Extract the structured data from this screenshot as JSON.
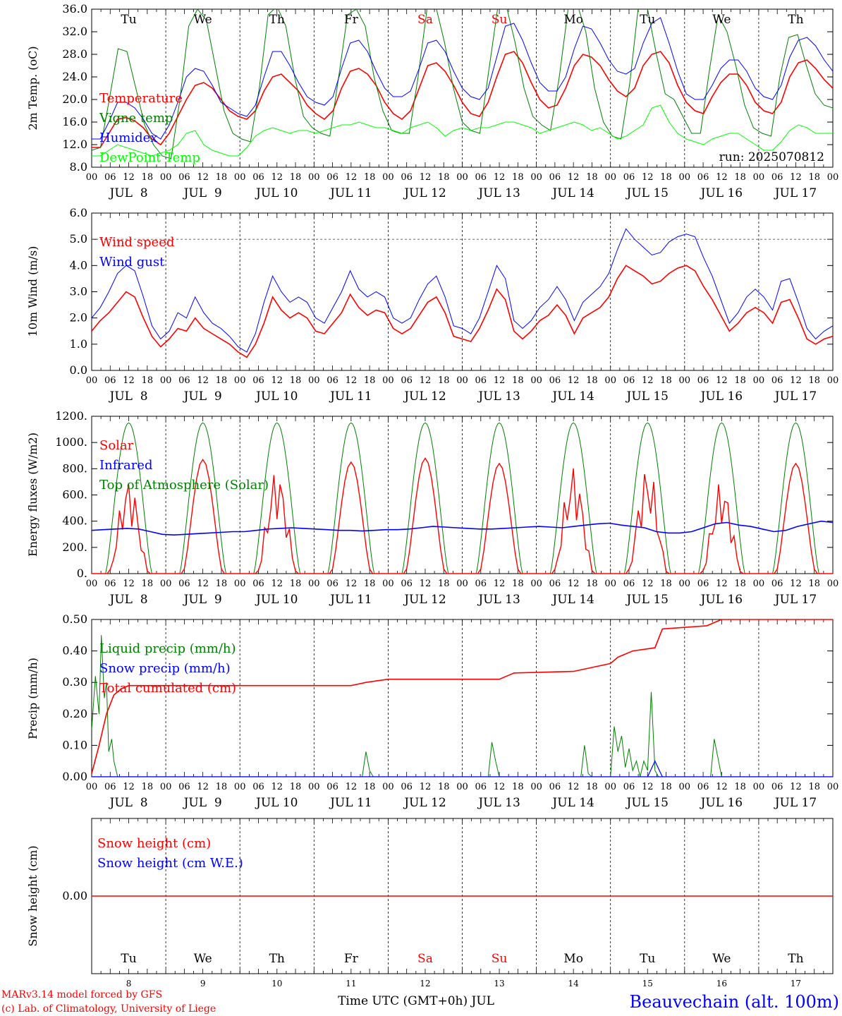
{
  "chart_data": [
    {
      "type": "line",
      "ylabel": "2m Temp. (oC)",
      "ylim": [
        8,
        36
      ],
      "yticks": [
        "8.0",
        "12.0",
        "16.0",
        "20.0",
        "24.0",
        "28.0",
        "32.0",
        "36.0"
      ],
      "run_label": "run: 2025070812",
      "grid": "dashed vertical lines at 00 UTC",
      "legend_position": "left",
      "series": [
        {
          "name": "Temperature",
          "color": "#ff0000",
          "values": [
            11.5,
            11.5,
            14,
            16.5,
            16.8,
            16.2,
            15,
            13,
            12,
            14,
            17,
            20,
            22.5,
            23,
            22,
            20,
            18,
            17,
            16.5,
            18,
            21.5,
            24,
            24.5,
            23,
            21.5,
            19,
            17.5,
            16.5,
            18,
            22,
            25,
            25.5,
            24.5,
            22.5,
            19.5,
            17.5,
            16.5,
            18,
            22,
            26,
            26.5,
            25,
            22.5,
            19.5,
            17.5,
            17,
            19.5,
            24,
            28,
            28.5,
            26.5,
            23,
            20,
            18.5,
            19,
            22,
            26,
            28,
            27.5,
            26,
            23.5,
            21.5,
            20.5,
            22,
            26,
            28,
            28.5,
            26.5,
            22.5,
            19.5,
            18,
            17.5,
            20.5,
            23,
            24.5,
            24.5,
            22.5,
            19.5,
            18,
            17.5,
            19.5,
            24,
            26.5,
            27,
            25.5,
            23.5,
            22
          ]
        },
        {
          "name": "Vigne temp",
          "color": "#008000",
          "values": [
            11,
            11.5,
            20,
            29,
            28.5,
            22,
            15.5,
            12,
            10,
            9.5,
            20,
            33,
            36,
            34,
            26,
            18,
            14,
            13,
            12.5,
            22,
            35,
            36.5,
            33,
            24,
            17,
            15,
            14,
            13.5,
            24,
            35,
            36,
            33,
            24,
            18,
            14.5,
            14,
            14,
            24,
            36,
            36.5,
            30,
            22,
            16,
            14.5,
            14,
            25,
            36,
            36.5,
            30,
            22,
            17,
            15.5,
            14.5,
            24,
            36,
            37,
            32,
            22,
            16,
            13.5,
            13,
            23,
            37,
            36,
            28,
            21,
            20,
            17,
            14,
            14,
            25,
            35,
            32,
            26,
            19,
            15,
            14,
            13.5,
            24,
            31,
            31.5,
            26,
            21,
            19,
            18.5
          ]
        },
        {
          "name": "Humidex",
          "color": "#0000ff",
          "values": [
            13,
            13,
            16,
            19.5,
            19.5,
            18.5,
            16.5,
            14,
            13,
            15.5,
            19.5,
            24,
            25.5,
            25,
            22.5,
            19.5,
            18.5,
            17.5,
            17,
            19,
            24,
            28.5,
            28.5,
            26,
            23,
            20.5,
            19.5,
            19,
            20.5,
            25.5,
            30,
            30.5,
            28.5,
            25,
            22,
            20.5,
            20.5,
            21.5,
            25.5,
            30,
            30.5,
            28.5,
            25,
            22,
            20.5,
            20,
            22,
            27.5,
            33,
            33.5,
            30.5,
            26.5,
            23,
            21.5,
            21.5,
            24,
            29,
            33,
            32.5,
            30,
            27,
            25,
            24.5,
            25.5,
            30,
            33.5,
            34.5,
            30,
            25,
            21,
            20,
            20,
            22.5,
            25.5,
            27,
            27,
            25,
            22,
            20.5,
            20,
            22.5,
            27.5,
            30.5,
            31,
            29.5,
            27,
            25
          ]
        },
        {
          "name": "DewPoint Temp",
          "color": "#00ff00",
          "values": [
            10,
            10,
            11,
            12,
            11.5,
            11,
            10.5,
            10,
            10.5,
            11,
            12,
            14,
            14.5,
            12,
            11,
            10.5,
            10,
            10,
            11.5,
            13.5,
            14.5,
            15,
            14.5,
            14,
            14.5,
            14.5,
            14,
            14.5,
            15,
            15.5,
            15.5,
            16,
            15.5,
            15,
            15,
            14.5,
            14,
            15,
            15.5,
            16,
            15,
            13.5,
            14.5,
            15,
            14.5,
            15,
            15,
            15.5,
            16,
            16,
            15.5,
            15,
            14,
            14.5,
            15,
            15.5,
            16,
            15.5,
            14.5,
            15,
            14,
            13,
            13.5,
            14.5,
            15.5,
            18.5,
            19,
            16,
            14,
            13,
            12.5,
            12,
            13,
            13.5,
            14,
            14,
            13,
            12,
            11,
            11,
            12.5,
            14.5,
            15.5,
            15,
            14,
            14,
            14
          ]
        }
      ]
    },
    {
      "type": "line",
      "ylabel": "10m Wind (m/s)",
      "ylim": [
        0,
        6
      ],
      "yticks": [
        "0.0",
        "1.0",
        "2.0",
        "3.0",
        "4.0",
        "5.0",
        "6.0"
      ],
      "reference_line": 5,
      "legend_position": "left",
      "series": [
        {
          "name": "Wind speed",
          "color": "#ff0000",
          "values": [
            1.5,
            1.9,
            2.2,
            2.6,
            3.0,
            2.8,
            2.0,
            1.3,
            0.9,
            1.2,
            1.6,
            1.5,
            2.0,
            1.6,
            1.4,
            1.2,
            1.0,
            0.7,
            0.5,
            1.0,
            1.8,
            2.8,
            2.3,
            2.0,
            2.2,
            2.0,
            1.5,
            1.4,
            1.8,
            2.2,
            2.9,
            2.4,
            2.1,
            2.3,
            2.2,
            1.6,
            1.4,
            1.6,
            2.1,
            2.6,
            2.8,
            2.2,
            1.3,
            1.2,
            1.1,
            1.6,
            2.3,
            3.1,
            2.7,
            1.5,
            1.2,
            1.5,
            1.9,
            2.1,
            2.5,
            2.1,
            1.4,
            2.0,
            2.2,
            2.4,
            2.8,
            3.5,
            4.0,
            3.8,
            3.6,
            3.3,
            3.4,
            3.7,
            3.9,
            4.0,
            3.8,
            3.2,
            2.7,
            2.1,
            1.5,
            1.8,
            2.2,
            2.4,
            2.2,
            1.8,
            2.6,
            2.7,
            2.0,
            1.2,
            1.0,
            1.2,
            1.3
          ]
        },
        {
          "name": "Wind gust",
          "color": "#0000ff",
          "values": [
            2.0,
            2.4,
            3.0,
            3.7,
            4.0,
            3.8,
            2.8,
            1.7,
            1.2,
            1.5,
            2.2,
            2.0,
            2.8,
            2.2,
            1.8,
            1.6,
            1.3,
            0.9,
            0.7,
            1.4,
            2.6,
            3.6,
            3.0,
            2.6,
            2.8,
            2.6,
            2.0,
            1.8,
            2.4,
            3.0,
            3.8,
            3.1,
            2.8,
            3.0,
            2.8,
            2.0,
            1.8,
            2.0,
            2.7,
            3.3,
            3.6,
            2.8,
            1.7,
            1.6,
            1.4,
            2.0,
            3.0,
            4.0,
            3.5,
            1.9,
            1.6,
            1.9,
            2.4,
            2.7,
            3.2,
            2.7,
            1.9,
            2.6,
            2.9,
            3.2,
            3.7,
            4.6,
            5.4,
            5.0,
            4.7,
            4.4,
            4.5,
            4.9,
            5.1,
            5.2,
            5.1,
            4.3,
            3.6,
            2.7,
            1.8,
            2.2,
            2.8,
            3.1,
            2.8,
            2.3,
            3.4,
            3.5,
            2.6,
            1.6,
            1.2,
            1.5,
            1.7
          ]
        }
      ]
    },
    {
      "type": "line",
      "ylabel": "Energy fluxes (W/m2)",
      "ylim": [
        0,
        1200
      ],
      "yticks": [
        "0.",
        "200.",
        "400.",
        "600.",
        "800.",
        "1000.",
        "1200."
      ],
      "legend_position": "left",
      "series": [
        {
          "name": "Solar",
          "color": "#ff0000",
          "peaks": [
            750,
            870,
            820,
            850,
            880,
            840,
            840,
            840,
            720,
            840
          ],
          "disturbed_days": [
            0,
            2,
            6,
            7,
            8
          ]
        },
        {
          "name": "Infrared",
          "color": "#0000ff",
          "values": [
            330,
            335,
            340,
            345,
            340,
            320,
            300,
            295,
            300,
            305,
            310,
            315,
            320,
            320,
            330,
            340,
            345,
            350,
            345,
            340,
            335,
            330,
            330,
            325,
            330,
            335,
            335,
            340,
            350,
            360,
            355,
            350,
            345,
            340,
            340,
            345,
            350,
            355,
            360,
            355,
            350,
            360,
            370,
            380,
            385,
            370,
            360,
            350,
            320,
            310,
            310,
            320,
            350,
            380,
            390,
            370,
            360,
            340,
            320,
            330,
            360,
            380,
            400,
            390
          ]
        },
        {
          "name": "Top of Atmosphere (Solar)",
          "color": "#008000",
          "peak": 1150
        }
      ]
    },
    {
      "type": "line",
      "ylabel": "Precip (mm/h)",
      "ylim": [
        0,
        0.5
      ],
      "yticks": [
        "0.00",
        "0.10",
        "0.20",
        "0.30",
        "0.40",
        "0.50"
      ],
      "legend_position": "left",
      "series": [
        {
          "name": "Liquid precip (mm/h)",
          "color": "#008000",
          "events": [
            [
              0,
              0.15
            ],
            [
              0.05,
              0.32
            ],
            [
              0.1,
              0.2
            ],
            [
              0.13,
              0.45
            ],
            [
              0.17,
              0.25
            ],
            [
              0.2,
              0.3
            ],
            [
              0.23,
              0.08
            ],
            [
              0.27,
              0.12
            ],
            [
              0.3,
              0.05
            ],
            [
              0.35,
              0
            ],
            [
              3.65,
              0
            ],
            [
              3.7,
              0.08
            ],
            [
              3.75,
              0.02
            ],
            [
              3.8,
              0
            ],
            [
              5.35,
              0
            ],
            [
              5.4,
              0.11
            ],
            [
              5.45,
              0.05
            ],
            [
              5.5,
              0
            ],
            [
              6.6,
              0
            ],
            [
              6.65,
              0.1
            ],
            [
              6.7,
              0.01
            ],
            [
              6.75,
              0
            ],
            [
              7.0,
              0
            ],
            [
              7.05,
              0.16
            ],
            [
              7.1,
              0.08
            ],
            [
              7.15,
              0.13
            ],
            [
              7.2,
              0.03
            ],
            [
              7.25,
              0.09
            ],
            [
              7.3,
              0.02
            ],
            [
              7.35,
              0.05
            ],
            [
              7.4,
              0
            ],
            [
              7.45,
              0.05
            ],
            [
              7.5,
              0.02
            ],
            [
              7.55,
              0.27
            ],
            [
              7.6,
              0.02
            ],
            [
              7.65,
              0
            ],
            [
              8.35,
              0
            ],
            [
              8.4,
              0.12
            ],
            [
              8.45,
              0.06
            ],
            [
              8.5,
              0
            ]
          ]
        },
        {
          "name": "Snow precip (mm/h)",
          "color": "#0000ff",
          "events": [
            [
              7.5,
              0
            ],
            [
              7.6,
              0.05
            ],
            [
              7.7,
              0
            ]
          ]
        },
        {
          "name": "Total cumulated (cm)",
          "color": "#ff0000",
          "points": [
            [
              0,
              0.01
            ],
            [
              0.1,
              0.1
            ],
            [
              0.2,
              0.2
            ],
            [
              0.3,
              0.26
            ],
            [
              0.4,
              0.28
            ],
            [
              0.5,
              0.29
            ],
            [
              3.5,
              0.29
            ],
            [
              3.7,
              0.3
            ],
            [
              4.0,
              0.31
            ],
            [
              5.5,
              0.31
            ],
            [
              5.7,
              0.33
            ],
            [
              6.5,
              0.335
            ],
            [
              6.7,
              0.345
            ],
            [
              7.0,
              0.36
            ],
            [
              7.1,
              0.38
            ],
            [
              7.3,
              0.4
            ],
            [
              7.6,
              0.41
            ],
            [
              7.7,
              0.47
            ],
            [
              8.3,
              0.48
            ],
            [
              8.5,
              0.5
            ],
            [
              10,
              0.5
            ]
          ]
        }
      ]
    },
    {
      "type": "line",
      "ylabel": "Snow height (cm)",
      "yticks": [
        "0.00"
      ],
      "legend_position": "left",
      "series": [
        {
          "name": "Snow height (cm)",
          "color": "#ff0000",
          "values": [
            0,
            0
          ]
        },
        {
          "name": "Snow height (cm W.E.)",
          "color": "#0000ff",
          "values": [
            0,
            0
          ]
        }
      ]
    }
  ],
  "x_axis": {
    "hour_ticks": [
      "00",
      "06",
      "12",
      "18"
    ],
    "end_tick": "00",
    "dates": [
      "JUL  8",
      "JUL  9",
      "JUL 10",
      "JUL 11",
      "JUL 12",
      "JUL 13",
      "JUL 14",
      "JUL 15",
      "JUL 16",
      "JUL 17"
    ],
    "weekdays": [
      "Tu",
      "We",
      "Th",
      "Fr",
      "Sa",
      "Su",
      "Mo",
      "Tu",
      "We",
      "Th"
    ],
    "weekday_colors": [
      "#000000",
      "#000000",
      "#000000",
      "#000000",
      "#ff0000",
      "#ff0000",
      "#000000",
      "#000000",
      "#000000",
      "#000000"
    ],
    "day_numbers": [
      "8",
      "9",
      "10",
      "11",
      "12",
      "13",
      "14",
      "15",
      "16",
      "17"
    ],
    "label": "Time UTC (GMT+0h) JUL"
  },
  "footer": {
    "model_line": "MARv3.14 model forced by GFS",
    "credit_line": "(c) Lab. of Climatology, University of Liege",
    "station": "Beauvechain (alt. 100m)",
    "station_color": "#0000ff",
    "credit_color": "#ff0000"
  }
}
